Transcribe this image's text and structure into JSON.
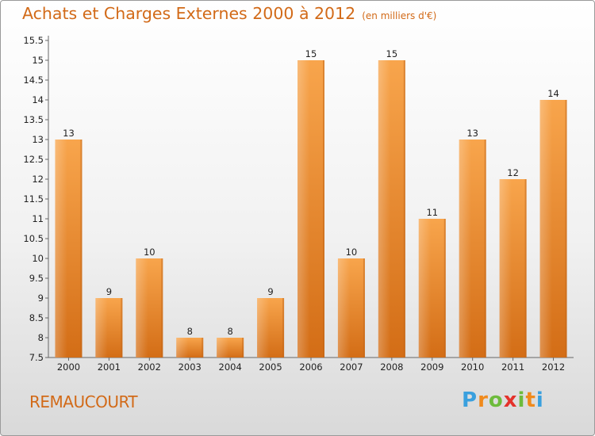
{
  "title": "Achats et Charges Externes 2000 à 2012",
  "unit_note": "(en milliers d'€)",
  "commune": "REMAUCOURT",
  "logo": {
    "text": "Proxiti"
  },
  "colors": {
    "bar_top": "#f8a54c",
    "bar_bottom": "#d36d16",
    "title": "#d26a18"
  },
  "chart_data": {
    "type": "bar",
    "title": "Achats et Charges Externes 2000 à 2012",
    "subtitle": "(en milliers d'€)",
    "categories": [
      "2000",
      "2001",
      "2002",
      "2003",
      "2004",
      "2005",
      "2006",
      "2007",
      "2008",
      "2009",
      "2010",
      "2011",
      "2012"
    ],
    "values": [
      13,
      9,
      10,
      8,
      8,
      9,
      15,
      10,
      15,
      11,
      13,
      12,
      14
    ],
    "data_labels": [
      "13",
      "9",
      "10",
      "8",
      "8",
      "9",
      "15",
      "10",
      "15",
      "11",
      "13",
      "12",
      "14"
    ],
    "yticks": [
      "7.5",
      "8",
      "8.5",
      "9",
      "9.5",
      "10",
      "10.5",
      "11",
      "11.5",
      "12",
      "12.5",
      "13",
      "13.5",
      "14",
      "14.5",
      "15",
      "15.5"
    ],
    "ytick_values": [
      7.5,
      8,
      8.5,
      9,
      9.5,
      10,
      10.5,
      11,
      11.5,
      12,
      12.5,
      13,
      13.5,
      14,
      14.5,
      15,
      15.5
    ],
    "ylim": [
      7.5,
      15.5
    ],
    "grid": false,
    "legend": "none"
  }
}
